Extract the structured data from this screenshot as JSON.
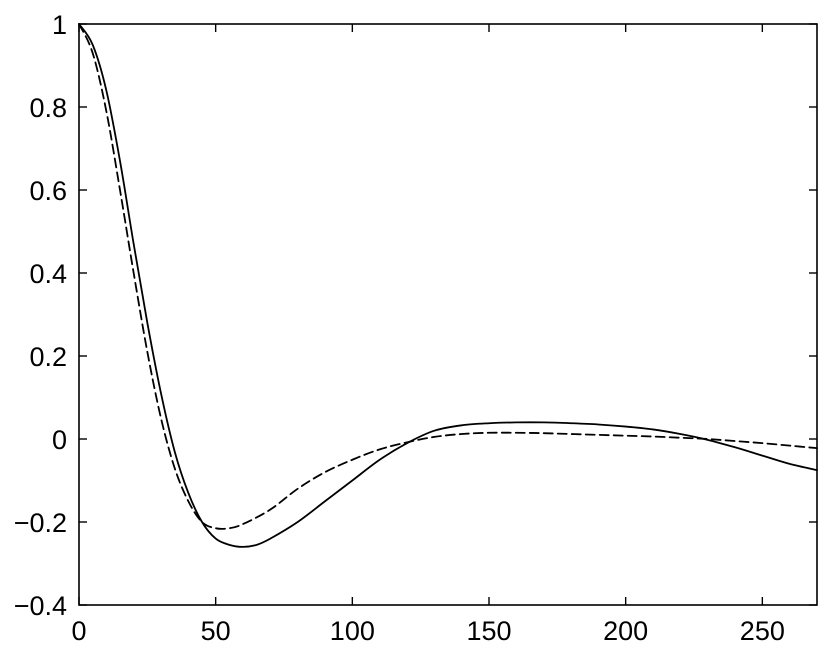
{
  "chart_data": {
    "type": "line",
    "title": "",
    "xlabel": "",
    "ylabel": "",
    "xlim": [
      0,
      270
    ],
    "ylim": [
      -0.4,
      1
    ],
    "grid": false,
    "xticks": [
      0,
      50,
      100,
      150,
      200,
      250
    ],
    "xtick_labels": [
      "0",
      "50",
      "100",
      "150",
      "200",
      "250"
    ],
    "yticks": [
      -0.4,
      -0.2,
      0,
      0.2,
      0.4,
      0.6,
      0.8,
      1
    ],
    "ytick_labels": [
      "−0.4",
      "−0.2",
      "0",
      "0.2",
      "0.4",
      "0.6",
      "0.8",
      "1"
    ],
    "series": [
      {
        "style": "solid",
        "color": "#000000",
        "x": [
          0,
          5,
          10,
          15,
          20,
          25,
          30,
          35,
          40,
          45,
          50,
          55,
          60,
          65,
          70,
          80,
          90,
          100,
          110,
          120,
          130,
          140,
          150,
          160,
          170,
          180,
          190,
          200,
          210,
          220,
          230,
          240,
          250,
          260,
          270
        ],
        "y": [
          1.0,
          0.95,
          0.84,
          0.67,
          0.47,
          0.28,
          0.11,
          -0.03,
          -0.13,
          -0.2,
          -0.24,
          -0.255,
          -0.26,
          -0.255,
          -0.24,
          -0.2,
          -0.15,
          -0.1,
          -0.05,
          -0.01,
          0.02,
          0.033,
          0.038,
          0.04,
          0.04,
          0.038,
          0.035,
          0.03,
          0.023,
          0.012,
          -0.002,
          -0.02,
          -0.04,
          -0.06,
          -0.075
        ]
      },
      {
        "style": "dashed",
        "color": "#000000",
        "x": [
          0,
          5,
          10,
          15,
          20,
          25,
          30,
          35,
          40,
          45,
          50,
          55,
          60,
          70,
          80,
          90,
          100,
          110,
          120,
          130,
          140,
          150,
          160,
          170,
          180,
          190,
          200,
          210,
          220,
          230,
          240,
          250,
          260,
          270
        ],
        "y": [
          1.0,
          0.93,
          0.79,
          0.6,
          0.4,
          0.21,
          0.05,
          -0.07,
          -0.15,
          -0.2,
          -0.215,
          -0.215,
          -0.205,
          -0.17,
          -0.12,
          -0.08,
          -0.05,
          -0.025,
          -0.008,
          0.005,
          0.012,
          0.015,
          0.015,
          0.014,
          0.012,
          0.01,
          0.008,
          0.006,
          0.003,
          0.0,
          -0.005,
          -0.01,
          -0.016,
          -0.022
        ]
      }
    ]
  }
}
